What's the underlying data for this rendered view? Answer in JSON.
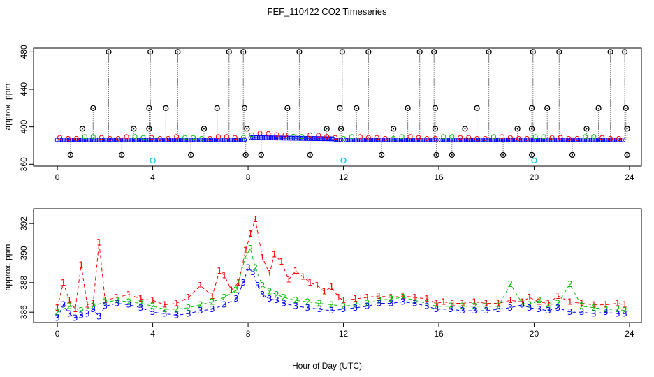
{
  "chart_data": [
    {
      "type": "scatter",
      "title": "FEF_110422  CO2 Timeseries",
      "xlabel": "",
      "ylabel": "approx. ppm",
      "xlim": [
        -1,
        24.5
      ],
      "ylim": [
        358,
        484
      ],
      "xticks": [
        0,
        4,
        8,
        12,
        16,
        20,
        24
      ],
      "yticks": [
        360,
        400,
        440,
        480
      ],
      "grid": false,
      "description_series": {
        "baseline": {
          "name": "blue measurements",
          "color": "#0000ff",
          "level": 386,
          "range": [
            0,
            23.8
          ]
        },
        "red": {
          "name": "red measurements",
          "color": "#ff0000"
        },
        "green": {
          "name": "green measurements",
          "color": "#00c000"
        },
        "flagged_high": {
          "name": "outliers (black)",
          "color": "#000000",
          "x": [
            2.15,
            3.9,
            5.05,
            7.2,
            7.8,
            10.15,
            11.95,
            13.05,
            15.2,
            15.8,
            18.1,
            19.95,
            21.05,
            23.2,
            23.8
          ],
          "y": [
            480,
            480,
            480,
            480,
            480,
            480,
            480,
            480,
            480,
            480,
            480,
            480,
            480,
            480,
            480
          ]
        },
        "flagged_mid": {
          "name": "outliers (black, mid)",
          "color": "#000000",
          "x": [
            1.5,
            3.85,
            4.55,
            6.7,
            7.85,
            9.65,
            11.85,
            12.55,
            14.7,
            15.85,
            17.6,
            19.9,
            20.55,
            22.7,
            23.85
          ],
          "y": [
            420,
            420,
            420,
            420,
            420,
            420,
            420,
            420,
            420,
            420,
            420,
            420,
            420,
            420,
            420
          ]
        },
        "flagged_low": {
          "name": "outliers (black, low)",
          "color": "#000000",
          "x": [
            0.55,
            2.7,
            5.6,
            7.9,
            8.55,
            10.6,
            13.6,
            15.9,
            16.55,
            18.7,
            19.9,
            21.6,
            23.9
          ],
          "y": [
            370,
            370,
            370,
            370,
            370,
            370,
            370,
            370,
            370,
            370,
            370,
            370,
            370
          ]
        },
        "flagged_398": {
          "name": "outliers (black, 398)",
          "color": "#000000",
          "x": [
            1.05,
            3.2,
            3.85,
            6.15,
            7.95,
            11.3,
            11.9,
            14.1,
            15.85,
            17.1,
            19.3,
            19.9,
            22.2,
            23.9
          ],
          "y": [
            398,
            398,
            398,
            398,
            398,
            398,
            398,
            398,
            398,
            398,
            398,
            398,
            398,
            398
          ]
        },
        "cyan": {
          "name": "cyan points",
          "color": "#00c8e0",
          "x": [
            4.0,
            12.0,
            20.0
          ],
          "y": [
            364,
            364,
            364
          ]
        }
      }
    },
    {
      "type": "line",
      "title": "",
      "xlabel": "Hour of Day (UTC)",
      "ylabel": "approx. ppm",
      "xlim": [
        -1,
        24.5
      ],
      "ylim": [
        385.3,
        393.0
      ],
      "xticks": [
        0,
        4,
        8,
        12,
        16,
        20,
        24
      ],
      "yticks": [
        386,
        388,
        390,
        392
      ],
      "grid": false,
      "series": [
        {
          "name": "1",
          "color": "#ff0000",
          "marker": "1",
          "x": [
            0.0,
            0.25,
            0.5,
            0.75,
            1.0,
            1.25,
            1.5,
            1.75,
            2.0,
            2.5,
            3.0,
            3.5,
            4.0,
            4.5,
            5.0,
            5.5,
            6.0,
            6.5,
            6.8,
            7.0,
            7.3,
            7.6,
            7.9,
            8.1,
            8.3,
            8.6,
            8.9,
            9.1,
            9.4,
            9.7,
            10.0,
            10.3,
            10.6,
            10.9,
            11.2,
            11.5,
            11.8,
            12.0,
            12.5,
            13.0,
            13.5,
            14.0,
            14.5,
            15.0,
            15.5,
            15.9,
            16.2,
            16.6,
            17.0,
            17.5,
            18.0,
            18.5,
            19.0,
            19.5,
            19.8,
            20.2,
            20.6,
            21.0,
            21.5,
            22.0,
            22.5,
            23.0,
            23.5,
            23.8
          ],
          "y": [
            386.3,
            388.0,
            386.8,
            386.2,
            389.2,
            386.5,
            386.6,
            390.7,
            386.8,
            387.0,
            387.2,
            386.9,
            386.8,
            386.5,
            386.6,
            387.0,
            387.8,
            387.1,
            388.8,
            388.5,
            387.5,
            388.0,
            390.2,
            391.3,
            392.3,
            389.7,
            388.6,
            389.9,
            389.4,
            388.2,
            388.8,
            388.4,
            388.0,
            387.8,
            387.4,
            387.7,
            387.0,
            386.8,
            386.9,
            387.0,
            387.1,
            387.0,
            387.1,
            387.0,
            386.9,
            386.6,
            386.7,
            386.6,
            386.6,
            386.7,
            386.6,
            386.6,
            386.8,
            386.7,
            387.0,
            386.7,
            386.6,
            387.1,
            386.7,
            386.6,
            386.5,
            386.5,
            386.6,
            386.5
          ]
        },
        {
          "name": "2",
          "color": "#00c000",
          "marker": "2",
          "x": [
            0.0,
            0.5,
            1.0,
            1.5,
            2.0,
            2.5,
            3.0,
            3.5,
            4.0,
            4.5,
            5.0,
            5.5,
            6.0,
            6.5,
            7.0,
            7.5,
            7.9,
            8.1,
            8.3,
            8.6,
            8.9,
            9.2,
            9.5,
            10.0,
            10.5,
            11.0,
            11.5,
            12.0,
            12.5,
            13.0,
            13.5,
            14.0,
            14.5,
            15.0,
            15.5,
            15.9,
            16.5,
            17.0,
            17.5,
            18.0,
            18.5,
            19.0,
            19.5,
            19.8,
            20.2,
            20.6,
            21.0,
            21.5,
            22.0,
            22.5,
            23.0,
            23.5,
            23.8
          ],
          "y": [
            386.0,
            386.4,
            386.1,
            386.4,
            386.7,
            386.8,
            386.7,
            386.6,
            386.4,
            386.2,
            386.2,
            386.3,
            386.5,
            386.7,
            387.0,
            387.5,
            389.8,
            390.3,
            389.0,
            387.8,
            387.4,
            387.2,
            387.0,
            386.8,
            386.7,
            386.6,
            386.5,
            386.4,
            386.5,
            386.6,
            386.8,
            386.9,
            387.0,
            386.8,
            386.6,
            386.4,
            386.4,
            386.4,
            386.4,
            386.4,
            386.4,
            387.9,
            386.6,
            386.5,
            386.8,
            386.5,
            386.6,
            387.9,
            386.4,
            386.3,
            386.2,
            386.2,
            386.1
          ]
        },
        {
          "name": "3",
          "color": "#0000ff",
          "marker": "3",
          "x": [
            0.0,
            0.25,
            0.5,
            0.75,
            1.0,
            1.25,
            1.5,
            1.75,
            2.0,
            2.5,
            3.0,
            3.5,
            4.0,
            4.5,
            5.0,
            5.5,
            6.0,
            6.5,
            7.0,
            7.5,
            7.8,
            8.0,
            8.2,
            8.4,
            8.6,
            8.9,
            9.2,
            9.5,
            10.0,
            10.5,
            11.0,
            11.5,
            12.0,
            12.5,
            13.0,
            13.5,
            14.0,
            14.5,
            15.0,
            15.5,
            15.9,
            16.5,
            17.0,
            17.5,
            18.0,
            18.5,
            19.0,
            19.5,
            19.8,
            20.2,
            20.6,
            21.0,
            21.5,
            22.0,
            22.5,
            23.0,
            23.5,
            23.8
          ],
          "y": [
            385.6,
            386.5,
            385.9,
            385.6,
            385.8,
            385.9,
            386.2,
            385.7,
            386.4,
            386.6,
            386.5,
            386.3,
            386.0,
            385.9,
            385.8,
            385.9,
            386.1,
            386.2,
            386.5,
            386.9,
            388.0,
            389.0,
            388.7,
            387.8,
            387.2,
            386.9,
            386.8,
            386.6,
            386.4,
            386.3,
            386.2,
            386.1,
            386.2,
            386.3,
            386.4,
            386.6,
            386.6,
            386.7,
            386.6,
            386.4,
            386.2,
            386.2,
            386.1,
            386.1,
            386.1,
            386.2,
            386.3,
            386.5,
            386.3,
            386.2,
            386.1,
            386.3,
            386.0,
            386.0,
            385.9,
            386.0,
            385.9,
            385.9
          ]
        }
      ]
    }
  ]
}
